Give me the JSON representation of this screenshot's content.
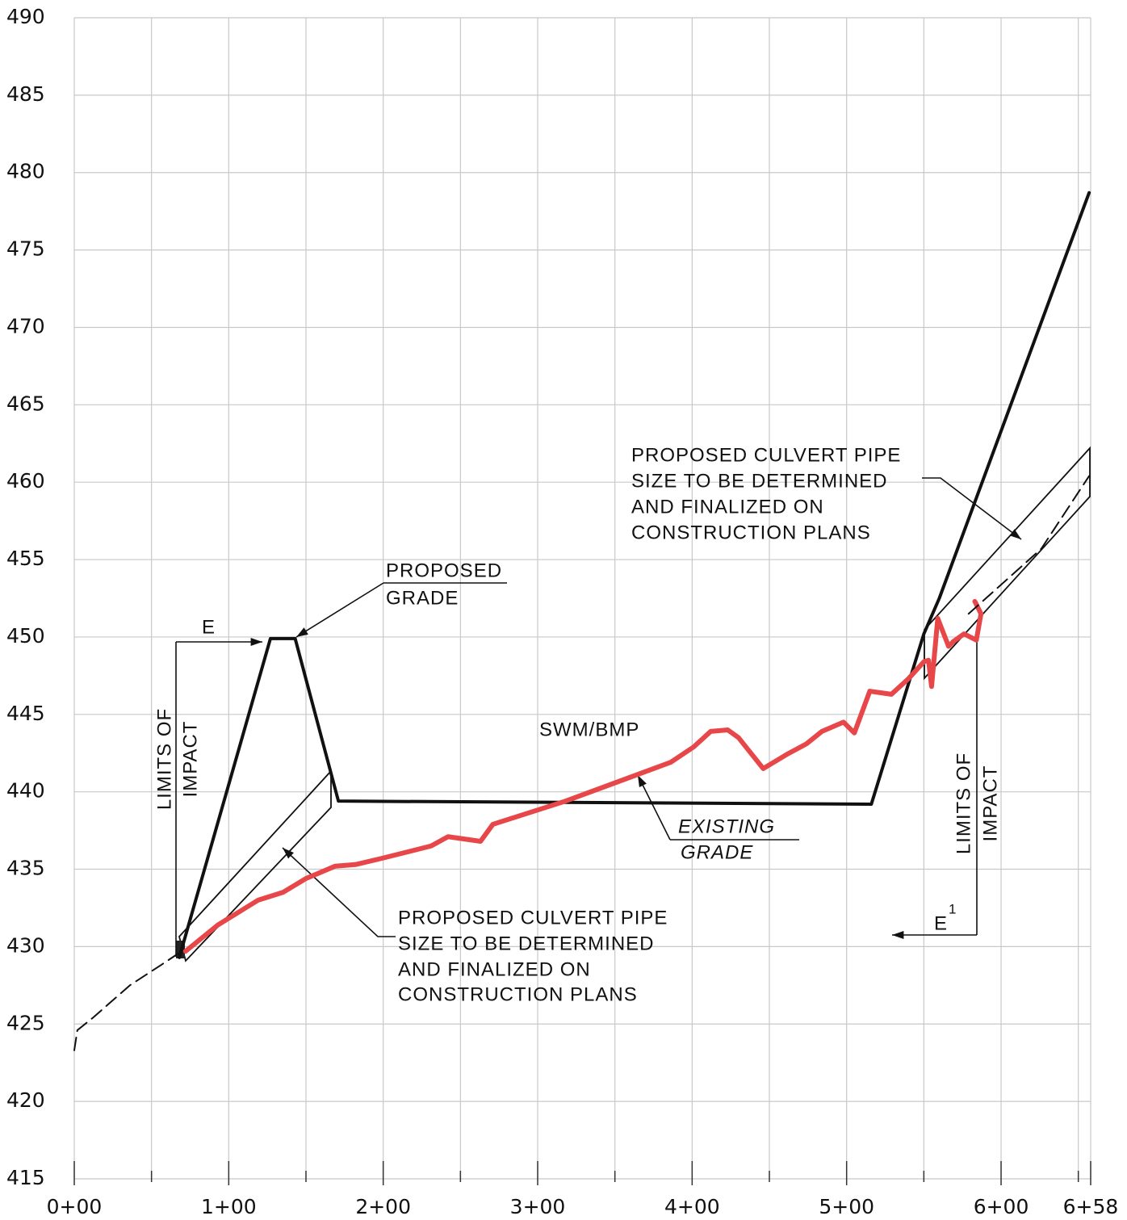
{
  "chart_data": {
    "type": "line",
    "xlim": [
      0,
      658
    ],
    "ylim": [
      415,
      490
    ],
    "xticks": [
      {
        "value": 0,
        "label": "0+00"
      },
      {
        "value": 100,
        "label": "1+00"
      },
      {
        "value": 200,
        "label": "2+00"
      },
      {
        "value": 300,
        "label": "3+00"
      },
      {
        "value": 400,
        "label": "4+00"
      },
      {
        "value": 500,
        "label": "5+00"
      },
      {
        "value": 600,
        "label": "6+00"
      },
      {
        "value": 658,
        "label": "6+58"
      }
    ],
    "xminor": [
      50,
      150,
      250,
      350,
      450,
      550,
      650
    ],
    "yticks": [
      415,
      420,
      425,
      430,
      435,
      440,
      445,
      450,
      455,
      460,
      465,
      470,
      475,
      480,
      485,
      490
    ],
    "grid": true,
    "series": [
      {
        "color": "#111111",
        "width": 4,
        "dash": false,
        "x": [
          68,
          127,
          143,
          171,
          516,
          550,
          560,
          657
        ],
        "values": [
          429.3,
          449.9,
          449.9,
          439.4,
          439.2,
          450.2,
          452.5,
          478.7
        ]
      },
      {
        "color": "#e8474a",
        "width": 6,
        "dash": false,
        "x": [
          72,
          93,
          119,
          135,
          150,
          169,
          182,
          199,
          231,
          242,
          263,
          271,
          318,
          386,
          401,
          412,
          423,
          430,
          446,
          461,
          474,
          484,
          498,
          505,
          515,
          529,
          540,
          550,
          553,
          555,
          559,
          566,
          569,
          576,
          584,
          587,
          583
        ],
        "values": [
          429.7,
          431.4,
          433.0,
          433.5,
          434.4,
          435.2,
          435.3,
          435.7,
          436.5,
          437.1,
          436.8,
          437.9,
          439.4,
          441.9,
          442.9,
          443.9,
          444.0,
          443.5,
          441.5,
          442.4,
          443.1,
          443.9,
          444.5,
          443.8,
          446.5,
          446.3,
          447.3,
          448.4,
          448.5,
          446.8,
          451.2,
          449.4,
          449.7,
          450.2,
          449.8,
          451.5,
          452.3
        ]
      },
      {
        "color": "#111111",
        "width": 2,
        "dash": true,
        "x": [
          0,
          2,
          12,
          36,
          56,
          68
        ],
        "values": [
          423.3,
          424.6,
          425.4,
          427.5,
          428.8,
          429.6
        ]
      },
      {
        "color": "#111111",
        "width": 2,
        "dash": true,
        "x": [
          579,
          626,
          657
        ],
        "values": [
          451.5,
          455.7,
          460.4
        ]
      }
    ],
    "annotations": [
      "PROPOSED",
      "GRADE",
      "E",
      "LIMITS OF",
      "IMPACT",
      "SWM/BMP",
      "EXISTING",
      "GRADE",
      "PROPOSED CULVERT PIPE",
      "SIZE TO BE DETERMINED",
      "AND FINALIZED ON",
      "CONSTRUCTION PLANS",
      "PROPOSED CULVERT PIPE",
      "SIZE TO BE DETERMINED",
      "AND FINALIZED ON",
      "CONSTRUCTION PLANS",
      "LIMITS OF",
      "IMPACT",
      "E",
      "1"
    ]
  }
}
